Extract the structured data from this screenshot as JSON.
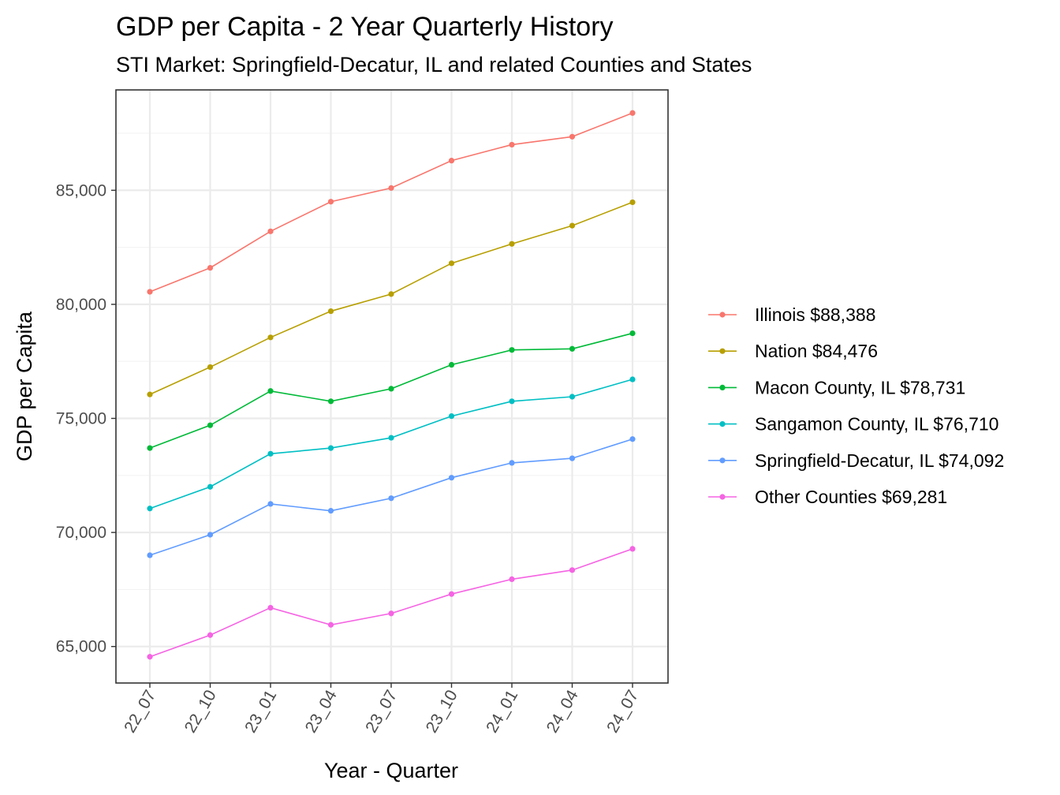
{
  "chart_data": {
    "type": "line",
    "title": "GDP per Capita - 2 Year Quarterly History",
    "subtitle": "STI Market: Springfield-Decatur, IL and related Counties and States",
    "xlabel": "Year - Quarter",
    "ylabel": "GDP per Capita",
    "categories": [
      "22_07",
      "22_10",
      "23_01",
      "23_04",
      "23_07",
      "23_10",
      "24_01",
      "24_04",
      "24_07"
    ],
    "ylim": [
      63400,
      89400
    ],
    "yticks": [
      65000,
      70000,
      75000,
      80000,
      85000
    ],
    "ytick_labels": [
      "65,000",
      "70,000",
      "75,000",
      "80,000",
      "85,000"
    ],
    "grid": true,
    "legend_position": "right",
    "series": [
      {
        "name": "Illinois $88,388",
        "color": "#F8766D",
        "values": [
          80550,
          81600,
          83200,
          84500,
          85100,
          86300,
          87000,
          87350,
          88388
        ]
      },
      {
        "name": "Nation $84,476",
        "color": "#B79F00",
        "values": [
          76050,
          77250,
          78550,
          79700,
          80450,
          81800,
          82650,
          83450,
          84476
        ]
      },
      {
        "name": "Macon County, IL $78,731",
        "color": "#00BA38",
        "values": [
          73700,
          74700,
          76200,
          75750,
          76300,
          77350,
          78000,
          78050,
          78731
        ]
      },
      {
        "name": "Sangamon County, IL $76,710",
        "color": "#00BFC4",
        "values": [
          71050,
          72000,
          73450,
          73700,
          74150,
          75100,
          75750,
          75950,
          76710
        ]
      },
      {
        "name": "Springfield-Decatur, IL $74,092",
        "color": "#619CFF",
        "values": [
          69000,
          69900,
          71250,
          70950,
          71500,
          72400,
          73050,
          73250,
          74092
        ]
      },
      {
        "name": "Other Counties $69,281",
        "color": "#F564E3",
        "values": [
          64550,
          65500,
          66700,
          65950,
          66450,
          67300,
          67950,
          68350,
          69281
        ]
      }
    ]
  }
}
